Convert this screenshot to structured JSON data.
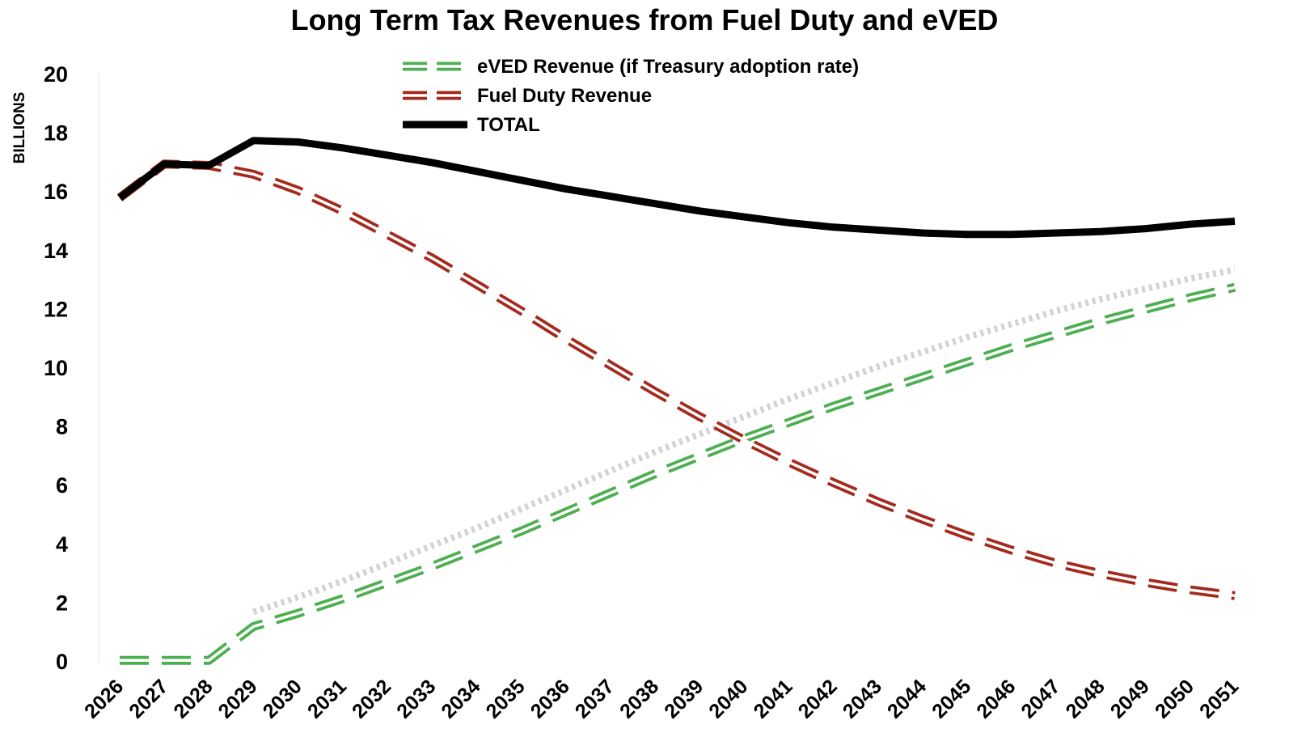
{
  "chart_data": {
    "type": "line",
    "title": "Long Term Tax Revenues from Fuel Duty and eVED",
    "xlabel": "",
    "ylabel": "BILLIONS",
    "ylim": [
      0,
      20
    ],
    "yticks": [
      "0",
      "2",
      "4",
      "6",
      "8",
      "10",
      "12",
      "14",
      "16",
      "18",
      "20"
    ],
    "x": [
      "2026",
      "2027",
      "2028",
      "2029",
      "2030",
      "2031",
      "2032",
      "2033",
      "2034",
      "2035",
      "2036",
      "2037",
      "2038",
      "2039",
      "2040",
      "2041",
      "2042",
      "2043",
      "2044",
      "2045",
      "2046",
      "2047",
      "2048",
      "2049",
      "2050",
      "2051"
    ],
    "series": [
      {
        "name": "eVED Revenue (if Treasury adoption rate)",
        "style": "double-dashed",
        "color": "#4caf50",
        "values": [
          0.05,
          0.05,
          0.05,
          1.2,
          1.65,
          2.15,
          2.7,
          3.25,
          3.85,
          4.45,
          5.1,
          5.75,
          6.4,
          7.0,
          7.6,
          8.15,
          8.7,
          9.2,
          9.7,
          10.2,
          10.7,
          11.15,
          11.6,
          12.0,
          12.4,
          12.75
        ]
      },
      {
        "name": "Fuel Duty Revenue",
        "style": "double-dashed",
        "color": "#a52a1e",
        "values": [
          15.8,
          16.95,
          16.9,
          16.6,
          16.05,
          15.35,
          14.55,
          13.75,
          12.85,
          11.95,
          11.0,
          10.1,
          9.2,
          8.35,
          7.55,
          6.8,
          6.1,
          5.45,
          4.85,
          4.3,
          3.8,
          3.35,
          3.0,
          2.7,
          2.45,
          2.25
        ]
      },
      {
        "name": "TOTAL",
        "style": "solid",
        "color": "#000000",
        "values": [
          15.8,
          16.95,
          16.9,
          17.75,
          17.7,
          17.5,
          17.25,
          17.0,
          16.7,
          16.4,
          16.1,
          15.85,
          15.6,
          15.35,
          15.15,
          14.95,
          14.8,
          14.7,
          14.6,
          14.55,
          14.55,
          14.6,
          14.65,
          14.75,
          14.9,
          15.0
        ]
      },
      {
        "name": "",
        "style": "dotted",
        "color": "#d3d3d3",
        "values": [
          null,
          null,
          null,
          1.7,
          2.2,
          2.75,
          3.35,
          3.95,
          4.55,
          5.2,
          5.85,
          6.5,
          7.15,
          7.75,
          8.35,
          8.95,
          9.5,
          10.05,
          10.55,
          11.05,
          11.5,
          11.95,
          12.35,
          12.7,
          13.05,
          13.35
        ]
      }
    ],
    "legend_position": "top-center"
  }
}
